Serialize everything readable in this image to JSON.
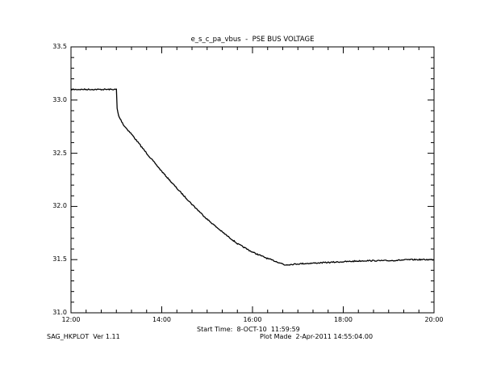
{
  "chart_data": {
    "type": "line",
    "title": "e_s_c_pa_vbus  -  PSE BUS VOLTAGE",
    "xlabel": "",
    "ylabel": "",
    "xlim": [
      "12:00",
      "20:00"
    ],
    "ylim": [
      31.0,
      33.5
    ],
    "x_ticks": [
      "12:00",
      "14:00",
      "16:00",
      "18:00",
      "20:00"
    ],
    "y_ticks": [
      "31.0",
      "31.5",
      "32.0",
      "32.5",
      "33.0",
      "33.5"
    ],
    "grid": false,
    "series": [
      {
        "x": [
          "12:00",
          "12:20",
          "12:40",
          "13:00",
          "13:01",
          "13:03",
          "13:10",
          "13:20",
          "13:40",
          "14:00",
          "14:20",
          "14:40",
          "15:00",
          "15:20",
          "15:40",
          "16:00",
          "16:20",
          "16:40",
          "16:42",
          "17:00",
          "17:30",
          "18:00",
          "18:30",
          "19:00",
          "19:30",
          "20:00"
        ],
        "values": [
          33.1,
          33.1,
          33.1,
          33.1,
          32.92,
          32.85,
          32.76,
          32.68,
          32.5,
          32.33,
          32.17,
          32.02,
          31.88,
          31.76,
          31.65,
          31.57,
          31.51,
          31.46,
          31.45,
          31.46,
          31.47,
          31.48,
          31.49,
          31.49,
          31.5,
          31.5
        ]
      }
    ]
  },
  "footer": {
    "start_time_label": "Start Time:  8-OCT-10  11:59:59",
    "program": "SAG_HKPLOT  Ver 1.11",
    "plot_made": "Plot Made  2-Apr-2011 14:55:04.00"
  }
}
